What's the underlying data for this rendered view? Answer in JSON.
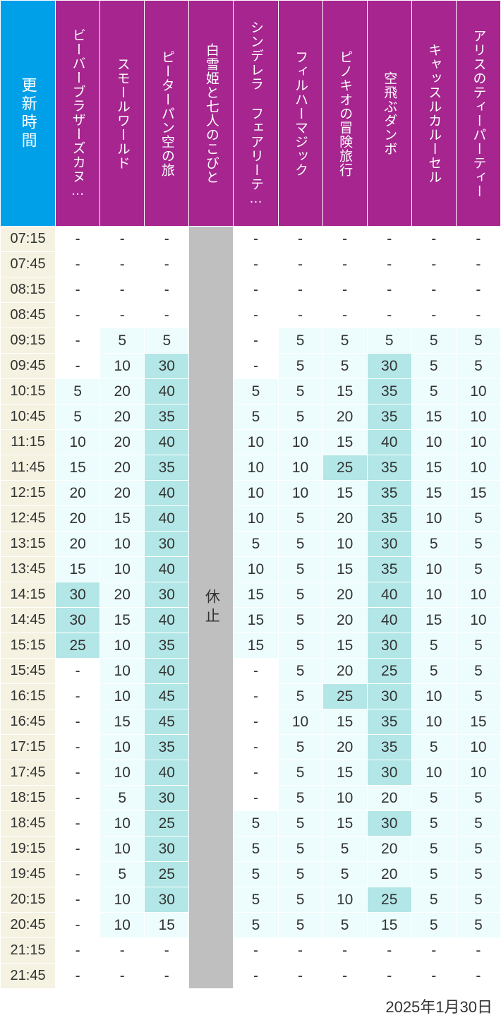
{
  "date_label": "2025年1月30日",
  "time_header_label": "更新時間",
  "closed_label": "休止",
  "header_colors": {
    "time": "#00a0e9",
    "attraction": "#a6258f"
  },
  "value_colors": {
    "breaks": [
      0,
      5,
      25,
      100
    ],
    "colors": [
      "#ffffff",
      "#edfcfc",
      "#b3e6e6"
    ]
  },
  "attractions": [
    {
      "id": "beaver",
      "label": "ビーバーブラザーズカヌ…"
    },
    {
      "id": "small_world",
      "label": "スモールワールド"
    },
    {
      "id": "peter_pan",
      "label": "ピーターパン空の旅"
    },
    {
      "id": "snow_white",
      "label": "白雪姫と七人のこびと"
    },
    {
      "id": "cinderella",
      "label": "シンデレラ フェアリーテ…"
    },
    {
      "id": "philhar",
      "label": "フィルハーマジック"
    },
    {
      "id": "pinocchio",
      "label": "ピノキオの冒険旅行"
    },
    {
      "id": "dumbo",
      "label": "空飛ぶダンボ"
    },
    {
      "id": "carousel",
      "label": "キャッスルカルーセル"
    },
    {
      "id": "alice",
      "label": "アリスのティーパーティー"
    }
  ],
  "closed_columns": [
    "snow_white"
  ],
  "times": [
    "07:15",
    "07:45",
    "08:15",
    "08:45",
    "09:15",
    "09:45",
    "10:15",
    "10:45",
    "11:15",
    "11:45",
    "12:15",
    "12:45",
    "13:15",
    "13:45",
    "14:15",
    "14:45",
    "15:15",
    "15:45",
    "16:15",
    "16:45",
    "17:15",
    "17:45",
    "18:15",
    "18:45",
    "19:15",
    "19:45",
    "20:15",
    "20:45",
    "21:15",
    "21:45"
  ],
  "data": {
    "beaver": [
      null,
      null,
      null,
      null,
      null,
      null,
      5,
      5,
      10,
      15,
      20,
      20,
      20,
      15,
      30,
      30,
      25,
      null,
      null,
      null,
      null,
      null,
      null,
      null,
      null,
      null,
      null,
      null,
      null,
      null
    ],
    "small_world": [
      null,
      null,
      null,
      null,
      5,
      10,
      20,
      20,
      20,
      20,
      20,
      15,
      10,
      10,
      20,
      15,
      10,
      10,
      10,
      15,
      10,
      10,
      5,
      10,
      10,
      5,
      10,
      10,
      null,
      null
    ],
    "peter_pan": [
      null,
      null,
      null,
      null,
      5,
      30,
      40,
      35,
      40,
      35,
      40,
      40,
      30,
      40,
      30,
      40,
      35,
      40,
      45,
      45,
      35,
      40,
      30,
      25,
      30,
      25,
      30,
      15,
      null,
      null
    ],
    "snow_white": [
      null,
      null,
      null,
      null,
      null,
      null,
      null,
      null,
      null,
      null,
      null,
      null,
      null,
      null,
      null,
      null,
      null,
      null,
      null,
      null,
      null,
      null,
      null,
      null,
      null,
      null,
      null,
      null,
      null,
      null
    ],
    "cinderella": [
      null,
      null,
      null,
      null,
      null,
      null,
      5,
      5,
      10,
      10,
      10,
      10,
      5,
      10,
      15,
      15,
      15,
      null,
      null,
      null,
      null,
      null,
      null,
      5,
      5,
      5,
      5,
      5,
      null,
      null
    ],
    "philhar": [
      null,
      null,
      null,
      null,
      5,
      5,
      5,
      5,
      10,
      10,
      10,
      5,
      5,
      5,
      5,
      5,
      5,
      5,
      5,
      10,
      5,
      5,
      5,
      5,
      5,
      5,
      5,
      5,
      null,
      null
    ],
    "pinocchio": [
      null,
      null,
      null,
      null,
      5,
      5,
      15,
      20,
      15,
      25,
      15,
      20,
      10,
      15,
      20,
      20,
      15,
      20,
      25,
      15,
      20,
      15,
      10,
      15,
      5,
      5,
      10,
      5,
      null,
      null
    ],
    "dumbo": [
      null,
      null,
      null,
      null,
      5,
      30,
      35,
      35,
      40,
      35,
      35,
      35,
      30,
      35,
      40,
      40,
      30,
      25,
      30,
      35,
      35,
      30,
      20,
      30,
      20,
      20,
      25,
      15,
      null,
      null
    ],
    "carousel": [
      null,
      null,
      null,
      null,
      5,
      5,
      5,
      15,
      10,
      15,
      15,
      10,
      5,
      10,
      10,
      15,
      5,
      5,
      10,
      10,
      5,
      10,
      5,
      5,
      5,
      5,
      5,
      5,
      null,
      null
    ],
    "alice": [
      null,
      null,
      null,
      null,
      5,
      5,
      10,
      10,
      10,
      10,
      15,
      5,
      5,
      5,
      10,
      10,
      5,
      5,
      5,
      15,
      10,
      10,
      5,
      5,
      5,
      5,
      5,
      5,
      null,
      null
    ]
  }
}
